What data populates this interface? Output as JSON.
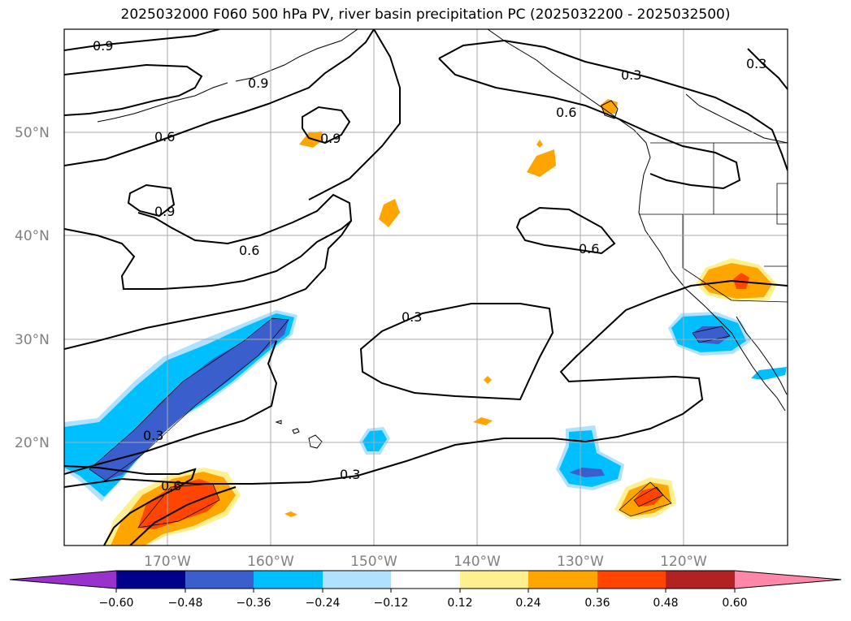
{
  "title": "2025032000 F060 500 hPa PV, river basin precipitation PC (2025032200 - 2025032500)",
  "map": {
    "lon_range": [
      -180,
      -110
    ],
    "lat_range": [
      10,
      60
    ],
    "lat_labels": [
      "50°N",
      "40°N",
      "30°N",
      "20°N"
    ],
    "lon_labels": [
      "170°W",
      "160°W",
      "150°W",
      "140°W",
      "130°W",
      "120°W"
    ],
    "contour_labels": [
      "0.9",
      "0.9",
      "0.9",
      "0.6",
      "0.9",
      "0.6",
      "0.3",
      "0.6",
      "0.3",
      "0.6",
      "0.6",
      "0.3",
      "0.3"
    ],
    "grid": true
  },
  "colorbar": {
    "ticks": [
      "−0.60",
      "−0.48",
      "−0.36",
      "−0.24",
      "−0.12",
      "0.12",
      "0.24",
      "0.36",
      "0.48",
      "0.60"
    ],
    "colors": [
      "#9932cc",
      "#00008b",
      "#3a5fcd",
      "#00bfff",
      "#b0e2ff",
      "#ffffff",
      "#fff08f",
      "#ffa500",
      "#ff4500",
      "#b22222",
      "#ff88aa"
    ],
    "extend": "both"
  }
}
